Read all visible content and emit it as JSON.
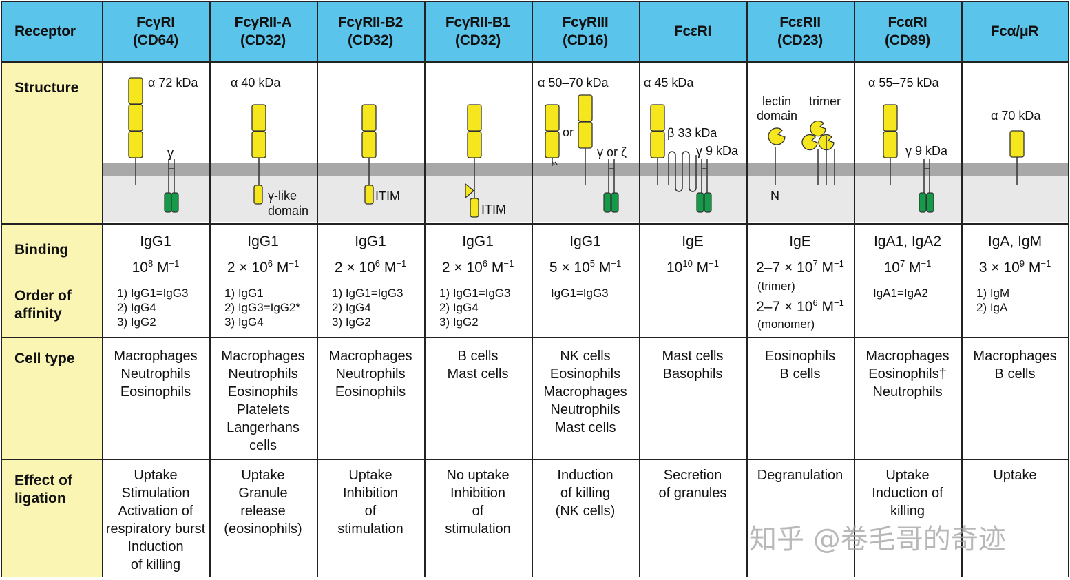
{
  "header": {
    "receptor_label": "Receptor",
    "columns": [
      {
        "name": "FcγRI",
        "cd": "(CD64)"
      },
      {
        "name": "FcγRII-A",
        "cd": "(CD32)"
      },
      {
        "name": "FcγRII-B2",
        "cd": "(CD32)"
      },
      {
        "name": "FcγRII-B1",
        "cd": "(CD32)"
      },
      {
        "name": "FcγRIII",
        "cd": "(CD16)"
      },
      {
        "name": "FcεRI",
        "cd": ""
      },
      {
        "name": "FcεRII",
        "cd": "(CD23)"
      },
      {
        "name": "FcαRI",
        "cd": "(CD89)"
      },
      {
        "name": "Fcα/μR",
        "cd": ""
      }
    ]
  },
  "row_labels": {
    "structure": "Structure",
    "binding": "Binding",
    "order_of_affinity_1": "Order of",
    "order_of_affinity_2": "affinity",
    "cell_type": "Cell type",
    "effect_1": "Effect of",
    "effect_2": "ligation"
  },
  "structure_labels": {
    "c0_alpha": "α  72 kDa",
    "c0_gamma": "γ",
    "c1_alpha": "α  40 kDa",
    "c1_glike_1": "γ-like",
    "c1_glike_2": "domain",
    "c2_itim": "ITIM",
    "c3_itim": "ITIM",
    "c4_alpha": "α  50–70 kDa",
    "c4_or": "or",
    "c4_gamma": "γ or ζ",
    "c5_alpha": "α  45 kDa",
    "c5_beta": "β  33 kDa",
    "c5_gamma": "γ  9 kDa",
    "c6_lectin_1": "lectin",
    "c6_lectin_2": "domain",
    "c6_trimer": "trimer",
    "c6_n": "N",
    "c7_alpha": "α  55–75 kDa",
    "c7_gamma": "γ  9 kDa",
    "c8_alpha": "α  70 kDa"
  },
  "binding": [
    {
      "ligand": "IgG1",
      "aff_pre": "10",
      "aff_exp": "8",
      "aff_unit": " M",
      "aff_unit_exp": "−1",
      "order": [
        "1) IgG1=IgG3",
        "2) IgG4",
        "3) IgG2"
      ]
    },
    {
      "ligand": "IgG1",
      "aff_pre": "2 × 10",
      "aff_exp": "6",
      "aff_unit": " M",
      "aff_unit_exp": "−1",
      "order": [
        "1) IgG1",
        "2) IgG3=IgG2*",
        "3) IgG4"
      ]
    },
    {
      "ligand": "IgG1",
      "aff_pre": "2 × 10",
      "aff_exp": "6",
      "aff_unit": " M",
      "aff_unit_exp": "−1",
      "order": [
        "1) IgG1=IgG3",
        "2) IgG4",
        "3) IgG2"
      ]
    },
    {
      "ligand": "IgG1",
      "aff_pre": "2 × 10",
      "aff_exp": "6",
      "aff_unit": " M",
      "aff_unit_exp": "−1",
      "order": [
        "1) IgG1=IgG3",
        "2) IgG4",
        "3) IgG2"
      ]
    },
    {
      "ligand": "IgG1",
      "aff_pre": "5 × 10",
      "aff_exp": "5",
      "aff_unit": " M",
      "aff_unit_exp": "−1",
      "order": [
        "IgG1=IgG3"
      ]
    },
    {
      "ligand": "IgE",
      "aff_pre": "10",
      "aff_exp": "10",
      "aff_unit": " M",
      "aff_unit_exp": "−1",
      "order": []
    },
    {
      "ligand": "IgE",
      "aff_pre": "2–7 × 10",
      "aff_exp": "7",
      "aff_unit": " M",
      "aff_unit_exp": "−1",
      "note1": "(trimer)",
      "aff2_pre": "2–7 × 10",
      "aff2_exp": "6",
      "note2": "(monomer)",
      "order": []
    },
    {
      "ligand": "IgA1, IgA2",
      "aff_pre": "10",
      "aff_exp": "7",
      "aff_unit": " M",
      "aff_unit_exp": "−1",
      "order": [
        "IgA1=IgA2"
      ]
    },
    {
      "ligand": "IgA, IgM",
      "aff_pre": "3 × 10",
      "aff_exp": "9",
      "aff_unit": " M",
      "aff_unit_exp": "−1",
      "order": [
        "1) IgM",
        "2) IgA"
      ]
    }
  ],
  "cell_types": [
    [
      "Macrophages",
      "Neutrophils",
      "Eosinophils"
    ],
    [
      "Macrophages",
      "Neutrophils",
      "Eosinophils",
      "Platelets",
      "Langerhans",
      "cells"
    ],
    [
      "Macrophages",
      "Neutrophils",
      "Eosinophils"
    ],
    [
      "B cells",
      "Mast cells"
    ],
    [
      "NK cells",
      "Eosinophils",
      "Macrophages",
      "Neutrophils",
      "Mast cells"
    ],
    [
      "Mast cells",
      "Basophils"
    ],
    [
      "Eosinophils",
      "B cells"
    ],
    [
      "Macrophages",
      "Eosinophils†",
      "Neutrophils"
    ],
    [
      "Macrophages",
      "B cells"
    ]
  ],
  "effects": [
    [
      "Uptake",
      "Stimulation",
      "Activation of",
      "respiratory burst",
      "Induction",
      "of killing"
    ],
    [
      "Uptake",
      "Granule",
      "release",
      "(eosinophils)"
    ],
    [
      "Uptake",
      "Inhibition",
      "of",
      "stimulation"
    ],
    [
      "No uptake",
      "Inhibition",
      "of",
      "stimulation"
    ],
    [
      "Induction",
      "of killing",
      "(NK cells)"
    ],
    [
      "Secretion",
      "of granules"
    ],
    [
      "Degranulation"
    ],
    [
      "Uptake",
      "Induction of",
      "killing"
    ],
    [
      "Uptake"
    ]
  ],
  "watermark": "知乎 @卷毛哥的奇迹",
  "colors": {
    "header": "#5bc4ea",
    "label_column": "#fbf5b4",
    "domain": "#f5e61e",
    "gamma_chain": "#159a4a",
    "membrane": "#a8a8a8",
    "cytoplasm": "#e8e8e8"
  }
}
